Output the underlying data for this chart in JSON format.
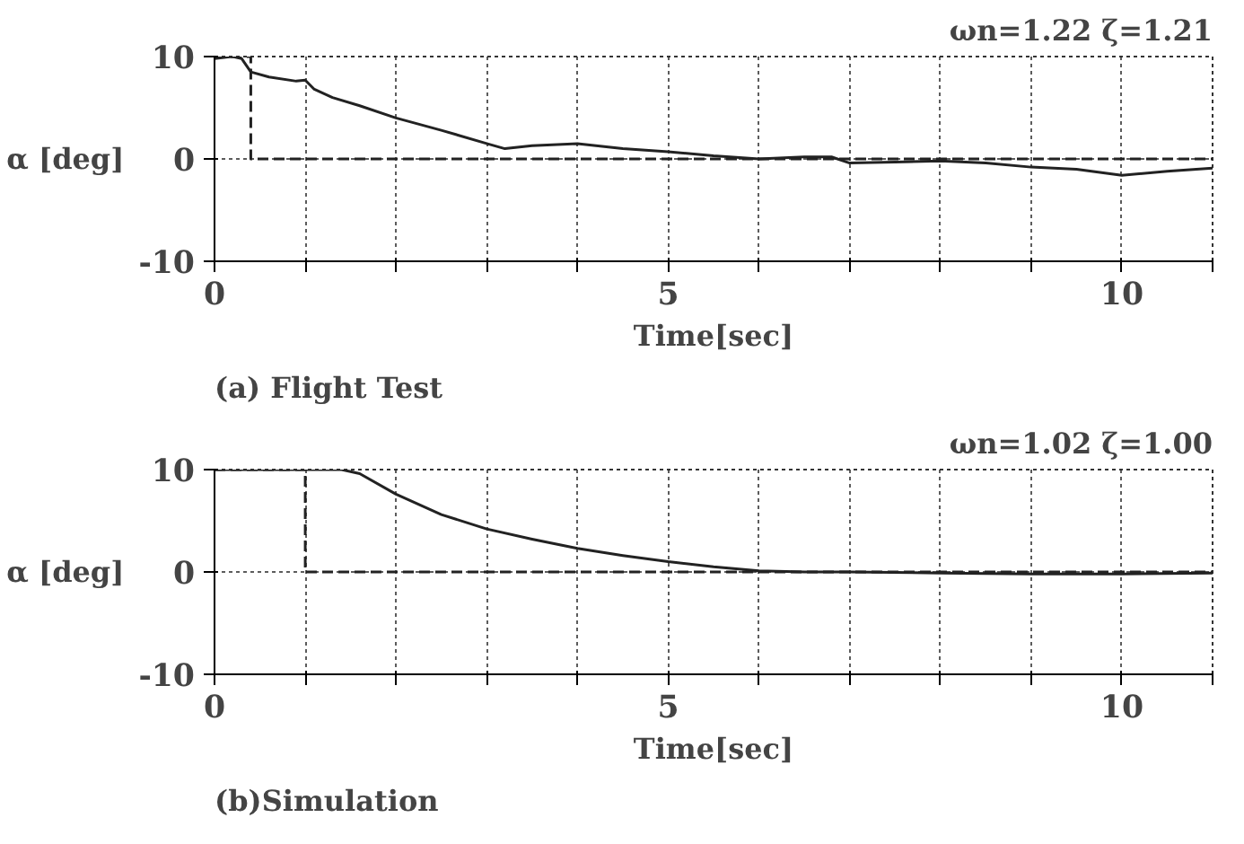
{
  "chart_data": [
    {
      "type": "line",
      "title": "(a) Flight Test",
      "annotations": [
        "ωn=1.22 ζ=1.21"
      ],
      "xlabel": "Time[sec]",
      "ylabel": "α [deg]",
      "xlim": [
        0,
        11
      ],
      "ylim": [
        -10,
        10
      ],
      "xticks": [
        0,
        {
          "value": 1,
          "label": null
        },
        {
          "value": 2,
          "label": null
        },
        {
          "value": 3,
          "label": null
        },
        {
          "value": 4,
          "label": null
        },
        5,
        {
          "value": 6,
          "label": null
        },
        {
          "value": 7,
          "label": null
        },
        {
          "value": 8,
          "label": null
        },
        {
          "value": 9,
          "label": null
        },
        10,
        {
          "value": 11,
          "label": null
        }
      ],
      "yticks": [
        -10,
        0,
        10
      ],
      "grid": true,
      "series": [
        {
          "color": "#222222",
          "line_style": "solid",
          "x": [
            0,
            0.2,
            0.3,
            0.4,
            0.6,
            0.9,
            1.0,
            1.1,
            1.3,
            1.6,
            2,
            2.5,
            3,
            3.2,
            3.5,
            4,
            4.5,
            5,
            5.5,
            6,
            6.5,
            6.8,
            7,
            7.5,
            8,
            8.5,
            9,
            9.5,
            10,
            10.5,
            11
          ],
          "values": [
            9.8,
            10,
            9.8,
            8.5,
            8,
            7.6,
            7.7,
            6.8,
            6,
            5.2,
            4,
            2.8,
            1.5,
            1.0,
            1.3,
            1.5,
            1.0,
            0.7,
            0.3,
            0,
            0.2,
            0.2,
            -0.4,
            -0.3,
            -0.2,
            -0.4,
            -0.8,
            -1.0,
            -1.6,
            -1.2,
            -0.9
          ]
        },
        {
          "color": "#222222",
          "line_style": "dashed",
          "x": [
            0,
            0.4,
            0.4,
            11
          ],
          "values": [
            10,
            10,
            0,
            0
          ]
        }
      ]
    },
    {
      "type": "line",
      "title": "(b)Simulation",
      "annotations": [
        "ωn=1.02 ζ=1.00"
      ],
      "xlabel": "Time[sec]",
      "ylabel": "α [deg]",
      "xlim": [
        0,
        11
      ],
      "ylim": [
        -10,
        10
      ],
      "xticks": [
        0,
        {
          "value": 1,
          "label": null
        },
        {
          "value": 2,
          "label": null
        },
        {
          "value": 3,
          "label": null
        },
        {
          "value": 4,
          "label": null
        },
        5,
        {
          "value": 6,
          "label": null
        },
        {
          "value": 7,
          "label": null
        },
        {
          "value": 8,
          "label": null
        },
        {
          "value": 9,
          "label": null
        },
        10,
        {
          "value": 11,
          "label": null
        }
      ],
      "yticks": [
        -10,
        0,
        10
      ],
      "grid": true,
      "series": [
        {
          "color": "#222222",
          "line_style": "solid",
          "x": [
            0,
            1.4,
            1.6,
            2,
            2.5,
            3,
            3.5,
            4,
            4.5,
            5,
            5.5,
            6,
            6.5,
            7,
            8,
            9,
            10,
            11
          ],
          "values": [
            10,
            10,
            9.6,
            7.6,
            5.6,
            4.2,
            3.2,
            2.3,
            1.6,
            1.0,
            0.5,
            0.1,
            0,
            0,
            -0.1,
            -0.2,
            -0.2,
            -0.1
          ]
        },
        {
          "color": "#222222",
          "line_style": "dashed",
          "x": [
            0,
            1,
            1,
            11
          ],
          "values": [
            10,
            10,
            0,
            0
          ]
        }
      ]
    }
  ]
}
